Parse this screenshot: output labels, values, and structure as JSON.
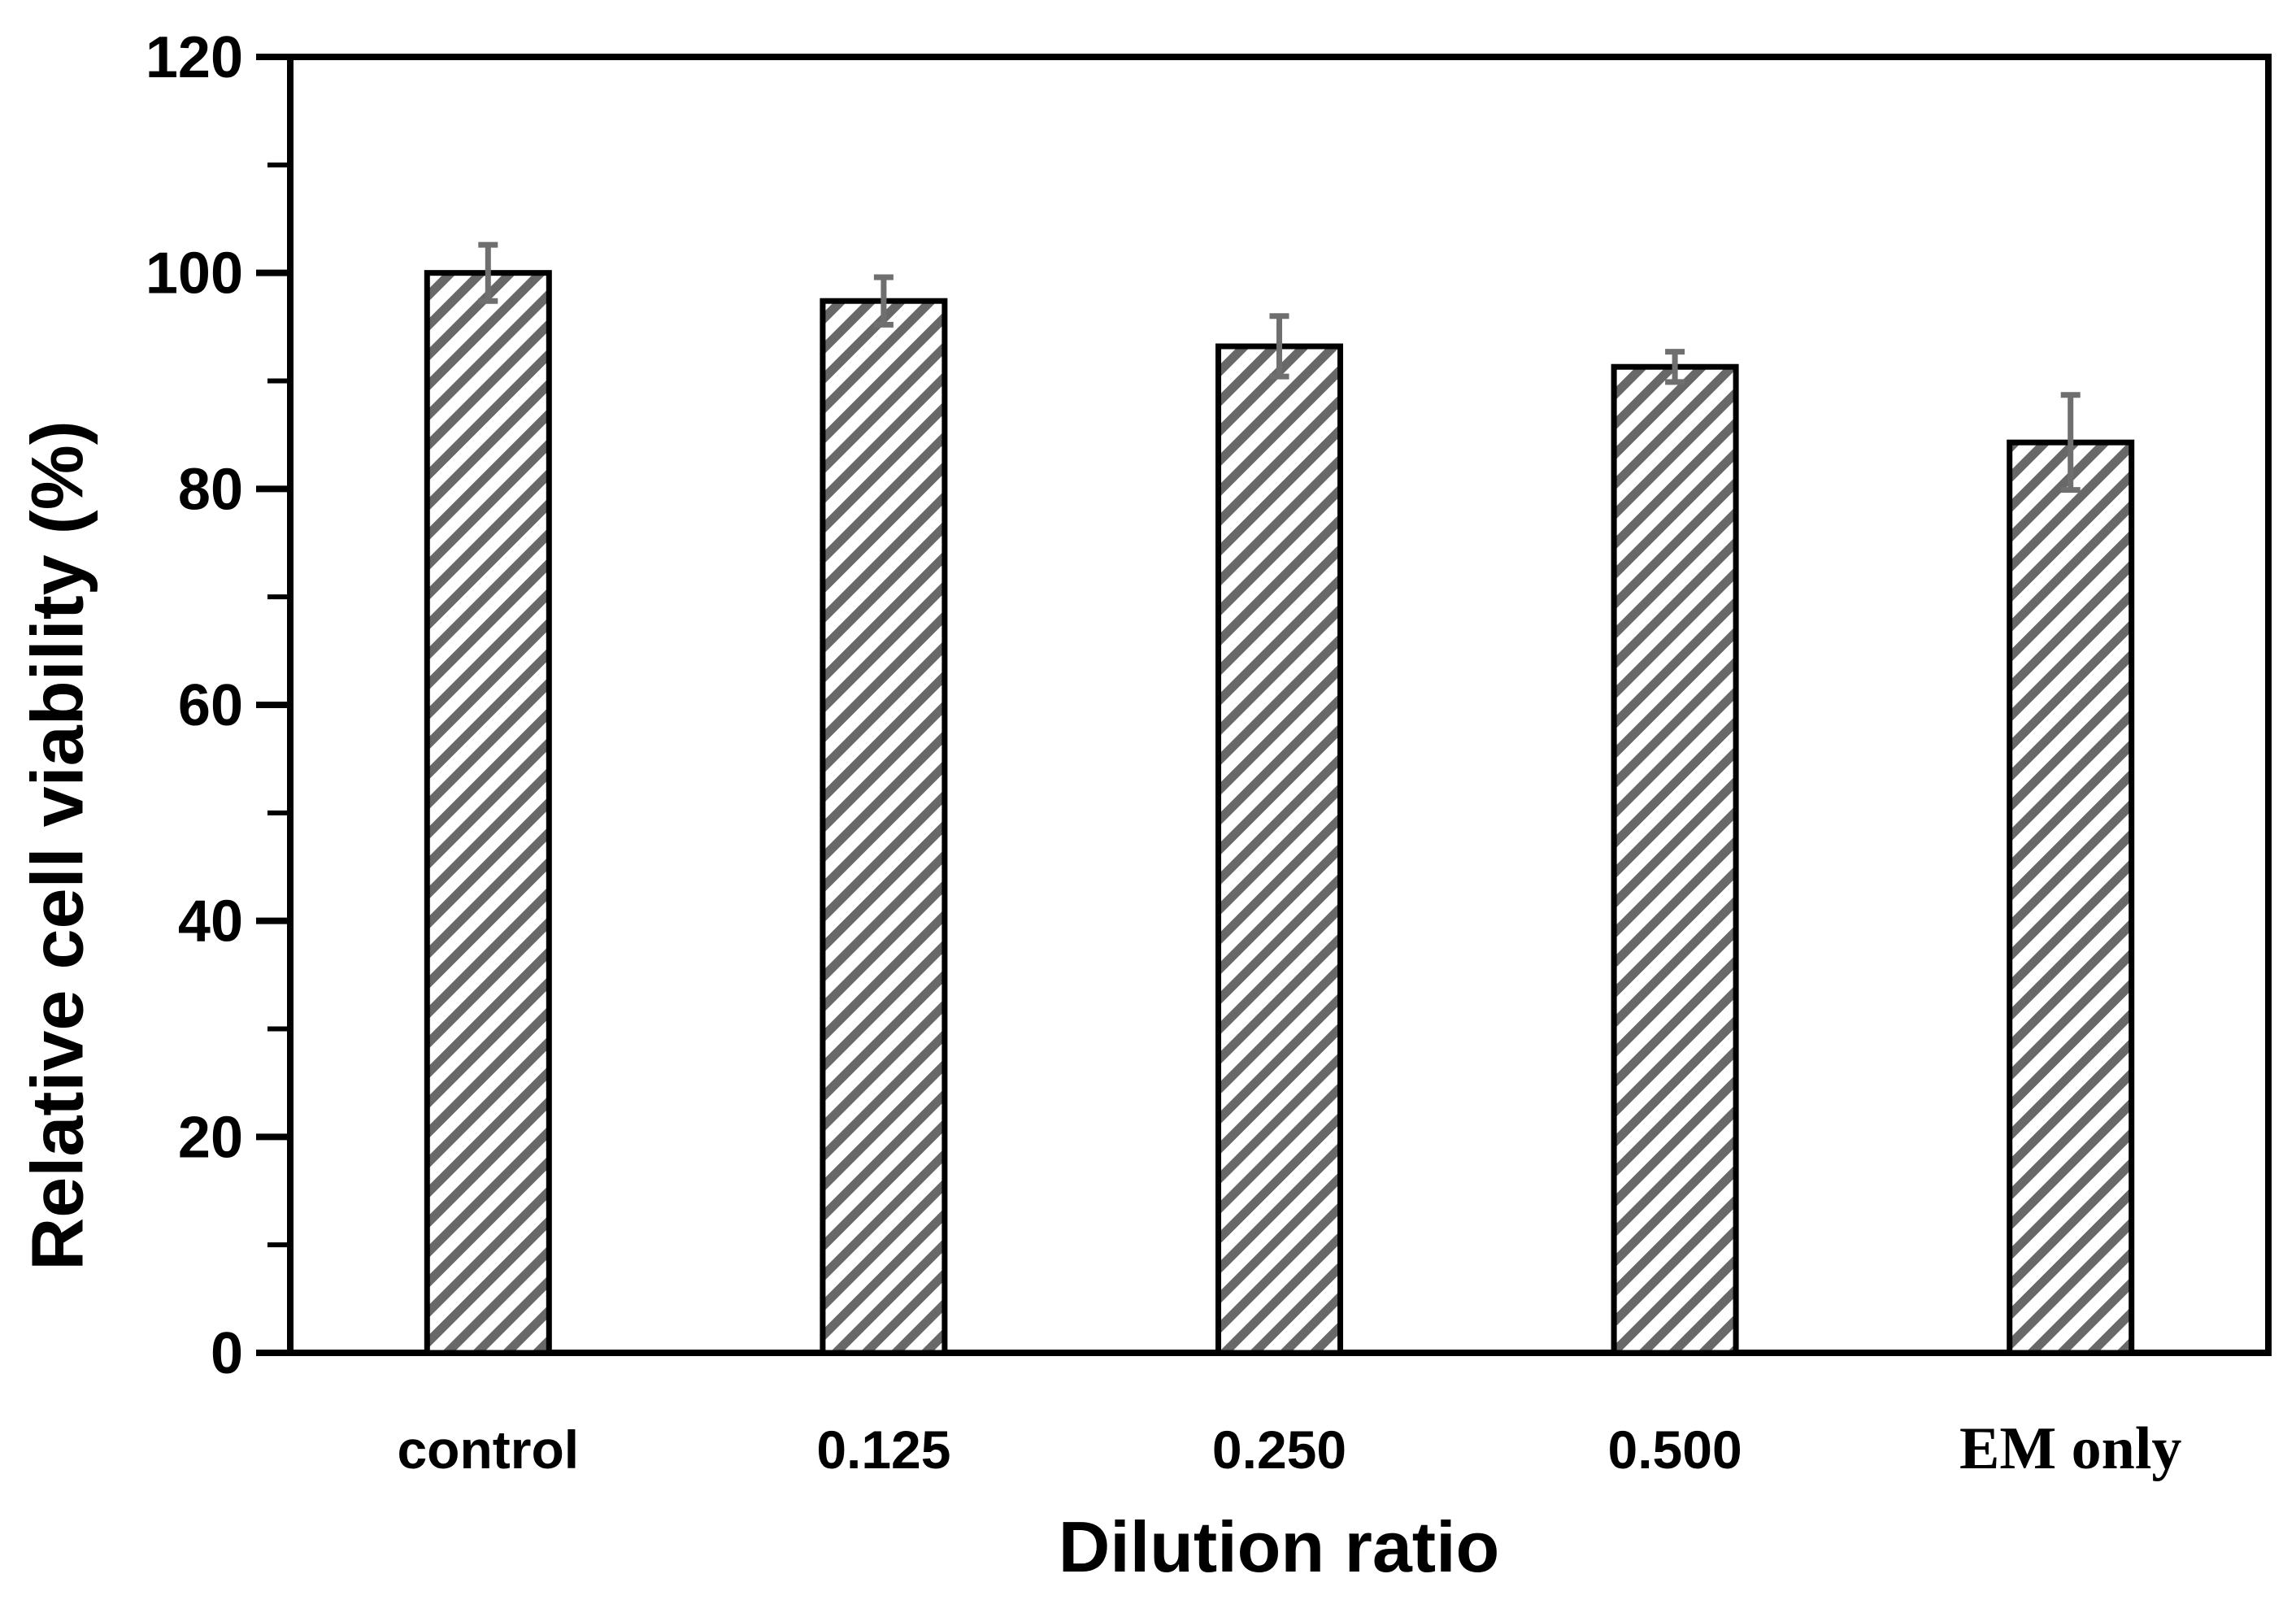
{
  "chart_data": {
    "type": "bar",
    "title": "",
    "xlabel": "Dilution ratio",
    "ylabel": "Relative cell viability (%)",
    "categories": [
      "control",
      "0.125",
      "0.250",
      "0.500",
      "EM only"
    ],
    "values": [
      100.0,
      97.4,
      93.2,
      91.3,
      84.3
    ],
    "errors": [
      2.6,
      2.2,
      2.8,
      1.4,
      4.4
    ],
    "ylim": [
      0,
      120
    ],
    "yticks_major": [
      0,
      20,
      40,
      60,
      80,
      100,
      120
    ],
    "ytick_minor_step": 10,
    "grid": false,
    "legend": null,
    "frame": "full-box",
    "colors": {
      "hatch": "#686868",
      "bar_background": "#ffffff",
      "bar_border": "#000000",
      "error_bar": "#6f6f6f",
      "axis": "#000000",
      "text": "#000000"
    },
    "bar_fill_style": "diagonal-hatch",
    "serif_category": "EM only"
  }
}
